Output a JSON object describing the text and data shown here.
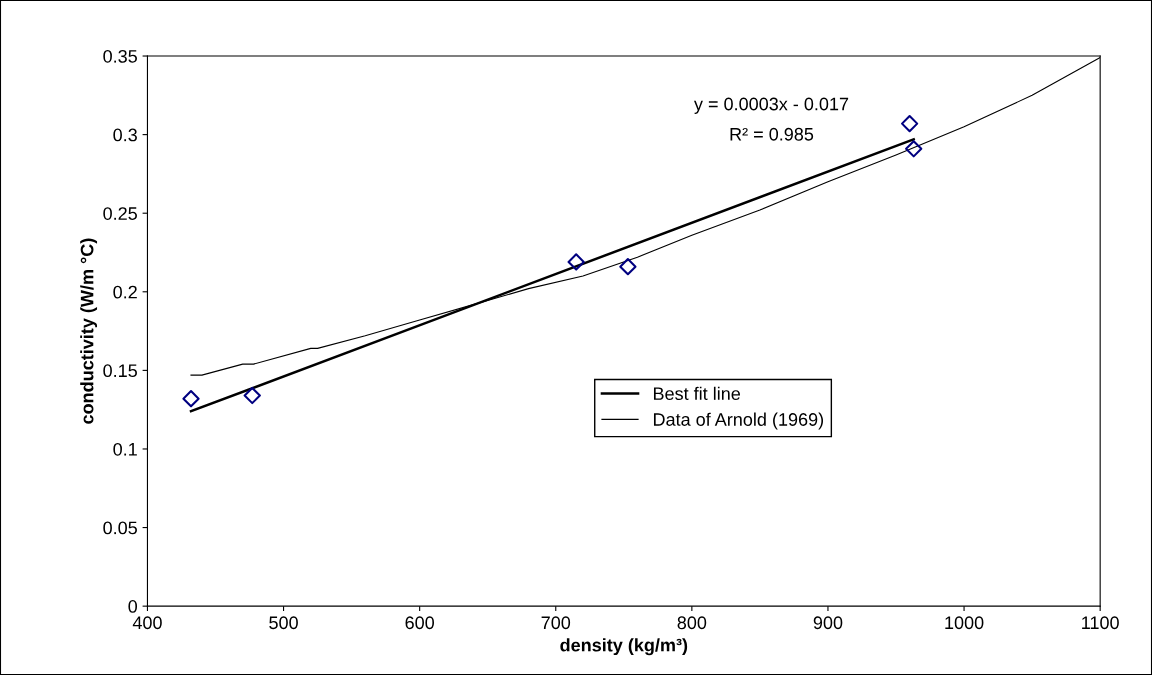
{
  "chart_data": {
    "type": "scatter",
    "xlabel": "density (kg/m³)",
    "ylabel": "conductivity (W/m °C)",
    "xlim": [
      400,
      1100
    ],
    "xticks": [
      400,
      500,
      600,
      700,
      800,
      900,
      1000,
      1100
    ],
    "ylim": [
      0,
      0.35
    ],
    "yticks": [
      0,
      0.05,
      0.1,
      0.15,
      0.2,
      0.25,
      0.3,
      0.35
    ],
    "grid": false,
    "legend": "right",
    "annotations": [
      "y = 0.0003x - 0.017",
      "R² = 0.985"
    ],
    "series": [
      {
        "color": "#000080",
        "marker": "diamond",
        "x": [
          432,
          477,
          715,
          753,
          960,
          963
        ],
        "values": [
          0.132,
          0.134,
          0.219,
          0.216,
          0.307,
          0.291
        ]
      },
      {
        "type": "line",
        "name": "Best fit line",
        "color": "#000000",
        "line_style": "solid",
        "x": [
          432,
          963
        ],
        "values": [
          0.124,
          0.297
        ]
      },
      {
        "type": "line",
        "name": "Data of Arnold (1969)",
        "color": "#000000",
        "line_style": "solid",
        "x": [
          432,
          440,
          470,
          478,
          520,
          525,
          560,
          600,
          640,
          680,
          720,
          760,
          800,
          850,
          900,
          950,
          1000,
          1050,
          1100
        ],
        "values": [
          0.147,
          0.147,
          0.154,
          0.154,
          0.164,
          0.164,
          0.172,
          0.182,
          0.192,
          0.202,
          0.21,
          0.222,
          0.236,
          0.252,
          0.27,
          0.287,
          0.305,
          0.325,
          0.349
        ]
      }
    ]
  }
}
